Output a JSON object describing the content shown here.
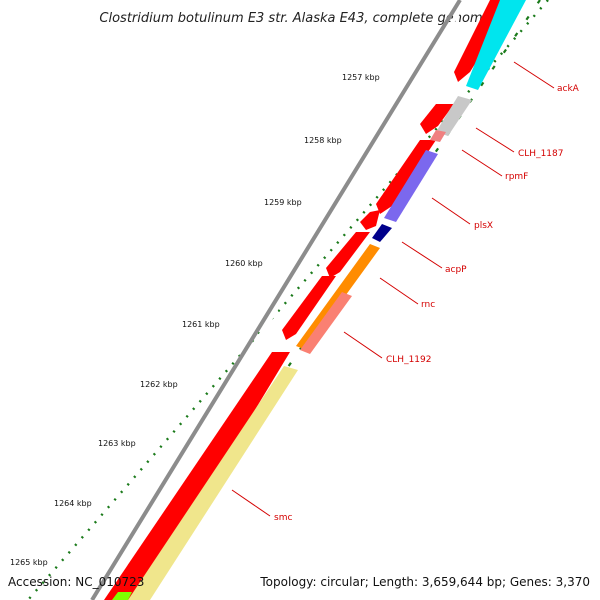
{
  "title": "Clostridium botulinum E3 str. Alaska E43, complete genome",
  "footer": {
    "accession": "Accession: NC_010723",
    "summary": "Topology: circular; Length: 3,659,644 bp; Genes: 3,370"
  },
  "ticks": [
    {
      "label": "1257 kbp"
    },
    {
      "label": "1258 kbp"
    },
    {
      "label": "1259 kbp"
    },
    {
      "label": "1260 kbp"
    },
    {
      "label": "1261 kbp"
    },
    {
      "label": "1262 kbp"
    },
    {
      "label": "1263 kbp"
    },
    {
      "label": "1264 kbp"
    },
    {
      "label": "1265 kbp"
    }
  ],
  "genes": [
    {
      "label": "ackA",
      "color": "#00e5ee"
    },
    {
      "label": "CLH_1187",
      "color": "#c8c8c8"
    },
    {
      "label": "rpmF",
      "color": "#f08080"
    },
    {
      "label": "plsX",
      "color": "#7b68ee"
    },
    {
      "label": "acpP",
      "color": "#00008b"
    },
    {
      "label": "rnc",
      "color": "#ff8c00"
    },
    {
      "label": "CLH_1192",
      "color": "#fa8072"
    },
    {
      "label": "smc",
      "color": "#f0e68c"
    }
  ],
  "colors": {
    "backbone": "#8c8c8c",
    "cds_forward": "#ff0000",
    "tick": "#1a7a1a",
    "gene_label": "#d40000"
  }
}
